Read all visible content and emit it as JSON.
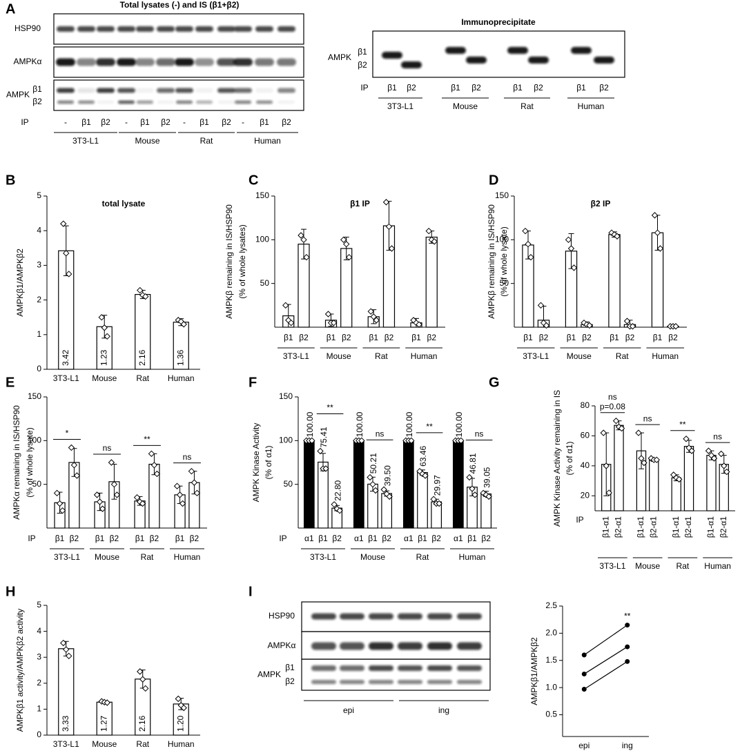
{
  "panel_letters": [
    "A",
    "B",
    "C",
    "D",
    "E",
    "F",
    "G",
    "H",
    "I"
  ],
  "blot_a": {
    "title": "Total  lysates (-) and IS (β1+β2)",
    "rows": [
      "HSP90",
      "AMPKα"
    ],
    "ampk": "AMPK",
    "isoforms": [
      "β1",
      "β2"
    ],
    "ip": "IP",
    "lanes": [
      "-",
      "β1",
      "β2",
      "-",
      "β1",
      "β2",
      "-",
      "β1",
      "β2",
      "-",
      "β1",
      "β2"
    ],
    "groups": [
      "3T3-L1",
      "Mouse",
      "Rat",
      "Human"
    ]
  },
  "blot_ip": {
    "title": "Immunoprecipitate",
    "ampk": "AMPK",
    "isoforms": [
      "β1",
      "β2"
    ],
    "ip": "IP",
    "lanes": [
      "β1",
      "β2",
      "β1",
      "β2",
      "β1",
      "β2",
      "β1",
      "β2"
    ],
    "groups": [
      "3T3-L1",
      "Mouse",
      "Rat",
      "Human"
    ]
  },
  "blot_i": {
    "rows": [
      "HSP90",
      "AMPKα"
    ],
    "ampk": "AMPK",
    "isoforms": [
      "β1",
      "β2"
    ],
    "groups": [
      "epi",
      "ing"
    ]
  },
  "chart_data": [
    {
      "type": "bar",
      "title": "total lysate",
      "ylabel": "AMPKβ1/AMPKβ2",
      "categories": [
        "3T3-L1",
        "Mouse",
        "Rat",
        "Human"
      ],
      "values": [
        3.42,
        1.23,
        2.16,
        1.36
      ],
      "errors": [
        0.72,
        0.33,
        0.12,
        0.1
      ],
      "points": [
        [
          4.2,
          3.35,
          2.75
        ],
        [
          1.5,
          1.2,
          0.95
        ],
        [
          2.28,
          2.14,
          2.1
        ],
        [
          1.42,
          1.38,
          1.3
        ]
      ],
      "value_label_position": "inside",
      "color": "#ffffff",
      "ylim": [
        0,
        5
      ],
      "yticks": [
        0,
        1,
        2,
        3,
        4,
        5
      ]
    },
    {
      "type": "bar",
      "title": "β1 IP",
      "ylabel": [
        "AMPKβ remaining in IS/HSP90",
        "(% of whole lysates)"
      ],
      "groups": [
        "3T3-L1",
        "Mouse",
        "Rat",
        "Human"
      ],
      "categories": [
        "β1",
        "β2",
        "β1",
        "β2",
        "β1",
        "β2",
        "β1",
        "β2"
      ],
      "values": [
        13,
        95,
        8,
        90,
        12,
        116,
        5,
        103
      ],
      "errors": [
        13,
        17,
        7,
        13,
        8,
        28,
        5,
        7
      ],
      "points": [
        [
          25,
          8,
          5
        ],
        [
          105,
          100,
          80
        ],
        [
          15,
          5,
          5
        ],
        [
          100,
          95,
          80
        ],
        [
          18,
          12,
          8
        ],
        [
          143,
          115,
          90
        ],
        [
          8,
          5,
          3
        ],
        [
          110,
          100,
          98
        ]
      ],
      "color": "#ffffff",
      "ylim": [
        0,
        150
      ],
      "yticks": [
        50,
        100,
        150
      ]
    },
    {
      "type": "bar",
      "title": "β2 IP",
      "ylabel": [
        "AMPKβ remaining in IS/HSP90",
        "(% of whole lysate)"
      ],
      "groups": [
        "3T3-L1",
        "Mouse",
        "Rat",
        "Human"
      ],
      "categories": [
        "β1",
        "β2",
        "β1",
        "β2",
        "β1",
        "β2",
        "β1",
        "β2"
      ],
      "values": [
        94,
        8,
        87,
        3,
        106,
        3,
        108,
        1
      ],
      "errors": [
        16,
        16,
        20,
        3,
        3,
        5,
        20,
        0
      ],
      "points": [
        [
          110,
          95,
          80
        ],
        [
          25,
          5,
          2
        ],
        [
          100,
          90,
          68
        ],
        [
          5,
          3,
          2
        ],
        [
          108,
          106,
          104
        ],
        [
          7,
          1,
          1
        ],
        [
          128,
          108,
          90
        ],
        [
          1,
          1,
          1
        ]
      ],
      "color": "#ffffff",
      "ylim": [
        0,
        150
      ],
      "yticks": [
        50,
        100,
        150
      ]
    },
    {
      "type": "bar",
      "ylabel": [
        "AMPKα remaining in IS/HSP90",
        "(% of whole lysate)"
      ],
      "xlabel": "IP",
      "groups": [
        "3T3-L1",
        "Mouse",
        "Rat",
        "Human"
      ],
      "categories": [
        "β1",
        "β2",
        "β1",
        "β2",
        "β1",
        "β2",
        "β1",
        "β2"
      ],
      "values": [
        29,
        75,
        30,
        53,
        31,
        73,
        38,
        52
      ],
      "errors": [
        12,
        16,
        10,
        20,
        5,
        12,
        10,
        13
      ],
      "points": [
        [
          40,
          28,
          20
        ],
        [
          92,
          72,
          60
        ],
        [
          38,
          30,
          22
        ],
        [
          75,
          50,
          38
        ],
        [
          35,
          30,
          28
        ],
        [
          85,
          72,
          62
        ],
        [
          48,
          38,
          28
        ],
        [
          65,
          52,
          40
        ]
      ],
      "significance": [
        [
          "*"
        ],
        [
          "ns"
        ],
        [
          "**"
        ],
        [
          "ns"
        ]
      ],
      "color": "#ffffff",
      "ylim": [
        0,
        150
      ],
      "yticks": [
        50,
        100,
        150
      ]
    },
    {
      "type": "bar",
      "ylabel": [
        "AMPK Kinase Activity",
        "(% of α1)"
      ],
      "xlabel": "IP",
      "groups": [
        "3T3-L1",
        "Mouse",
        "Rat",
        "Human"
      ],
      "categories": [
        "α1",
        "β1",
        "β2",
        "α1",
        "β1",
        "β2",
        "α1",
        "β1",
        "β2",
        "α1",
        "β1",
        "β2"
      ],
      "values": [
        100,
        75.41,
        22.8,
        100,
        50.21,
        39.5,
        100,
        63.46,
        29.97,
        100,
        46.81,
        39.05
      ],
      "value_labels": [
        "100.00",
        "75.41",
        "22.80",
        "100.00",
        "50.21",
        "39.50",
        "100.00",
        "63.46",
        "29.97",
        "100.00",
        "46.81",
        "39.05"
      ],
      "errors": [
        0,
        10,
        3,
        0,
        8,
        3,
        0,
        3,
        3,
        0,
        10,
        3
      ],
      "points": [
        [
          100,
          100,
          100
        ],
        [
          88,
          68,
          68
        ],
        [
          27,
          22,
          20
        ],
        [
          100,
          100,
          100
        ],
        [
          58,
          50,
          43
        ],
        [
          44,
          39,
          36
        ],
        [
          100,
          100,
          100
        ],
        [
          65,
          62,
          60
        ],
        [
          33,
          28,
          28
        ],
        [
          100,
          100,
          100
        ],
        [
          58,
          45,
          38
        ],
        [
          40,
          38,
          36
        ]
      ],
      "value_label_position": "above",
      "significance": [
        [
          "**"
        ],
        [
          "ns"
        ],
        [
          "**"
        ],
        [
          "ns"
        ]
      ],
      "colors": [
        "#000000",
        "#ffffff",
        "#ffffff",
        "#000000",
        "#ffffff",
        "#ffffff",
        "#000000",
        "#ffffff",
        "#ffffff",
        "#000000",
        "#ffffff",
        "#ffffff"
      ],
      "ylim": [
        0,
        150
      ],
      "yticks": [
        50,
        100,
        150
      ]
    },
    {
      "type": "bar",
      "ylabel": [
        "AMPK Kinase Activity remaining in IS",
        "(% of α1)"
      ],
      "xlabel": "IP",
      "rotate_labels": true,
      "groups": [
        "3T3-L1",
        "Mouse",
        "Rat",
        "Human"
      ],
      "categories": [
        "β1-α1",
        "β2-α1",
        "β1-α1",
        "β2-α1",
        "β1-α1",
        "β2-α1",
        "β1-α1",
        "β2-α1"
      ],
      "values": [
        41,
        67,
        50,
        44,
        32,
        53,
        47,
        41
      ],
      "errors": [
        21,
        3,
        12,
        1,
        2,
        4,
        3,
        6
      ],
      "points": [
        [
          62,
          40,
          22
        ],
        [
          70,
          66,
          65
        ],
        [
          62,
          45,
          42
        ],
        [
          45,
          44,
          44
        ],
        [
          34,
          32,
          31
        ],
        [
          58,
          52,
          50
        ],
        [
          50,
          47,
          45
        ],
        [
          48,
          40,
          36
        ]
      ],
      "significance": [
        [
          "ns",
          "p=0.08"
        ],
        [
          "ns"
        ],
        [
          "**"
        ],
        [
          "ns"
        ]
      ],
      "color": "#ffffff",
      "ylim": [
        10,
        80
      ],
      "yticks": [
        20,
        40,
        60,
        80
      ]
    },
    {
      "type": "bar",
      "ylabel": "AMPKβ1 activity/AMPKβ2 activity",
      "categories": [
        "3T3-L1",
        "Mouse",
        "Rat",
        "Human"
      ],
      "values": [
        3.33,
        1.27,
        2.16,
        1.2
      ],
      "value_labels": [
        "3.33",
        "1.27",
        "2.16",
        "1.20"
      ],
      "errors": [
        0.28,
        0.04,
        0.35,
        0.22
      ],
      "points": [
        [
          3.55,
          3.3,
          3.05
        ],
        [
          1.3,
          1.27,
          1.25
        ],
        [
          2.45,
          2.15,
          1.8
        ],
        [
          1.4,
          1.15,
          1.05
        ]
      ],
      "value_label_position": "inside",
      "color": "#ffffff",
      "ylim": [
        0,
        5
      ],
      "yticks": [
        0,
        1,
        2,
        3,
        4,
        5
      ]
    },
    {
      "type": "line",
      "ylabel": "AMPKβ1/AMPKβ2",
      "categories": [
        "epi",
        "ing"
      ],
      "series": [
        {
          "color": "#000000",
          "values": [
            1.6,
            2.15
          ]
        },
        {
          "color": "#000000",
          "values": [
            1.25,
            1.75
          ]
        },
        {
          "color": "#000000",
          "values": [
            0.97,
            1.48
          ]
        }
      ],
      "significance": "**",
      "ylim": [
        0.1,
        2.5
      ],
      "yticks": [
        0.5,
        {
          "value": 1,
          "label": "1.0"
        },
        1.5,
        {
          "value": 2,
          "label": "2.0"
        },
        2.5
      ]
    }
  ]
}
